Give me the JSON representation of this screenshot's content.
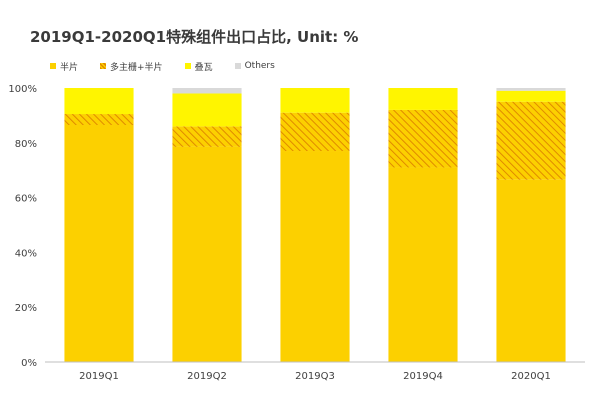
{
  "chart_data": {
    "type": "bar",
    "stacked": true,
    "title": "2019Q1-2020Q1特殊组件出口占比, Unit: %",
    "categories": [
      "2019Q1",
      "2019Q2",
      "2019Q3",
      "2019Q4",
      "2020Q1"
    ],
    "series": [
      {
        "name": "半片",
        "color": "#FCD000",
        "pattern": "solid",
        "values": [
          86.5,
          78.5,
          77,
          71,
          66.5
        ]
      },
      {
        "name": "多主栅+半片",
        "color": "#F2A900",
        "pattern": "hatch",
        "values": [
          4,
          7.5,
          14,
          21,
          28.5
        ]
      },
      {
        "name": "叠瓦",
        "color": "#FFF500",
        "pattern": "solid",
        "values": [
          9.5,
          12,
          9,
          8,
          4
        ]
      },
      {
        "name": "Others",
        "color": "#D9D9D9",
        "pattern": "solid",
        "values": [
          0,
          2,
          0,
          0,
          1
        ]
      }
    ],
    "ylim": [
      0,
      100
    ],
    "yticks": [
      0,
      20,
      40,
      60,
      80,
      100
    ],
    "ytick_labels": [
      "0%",
      "20%",
      "40%",
      "60%",
      "80%",
      "100%"
    ],
    "legend_position": "top-left",
    "grid": false
  }
}
